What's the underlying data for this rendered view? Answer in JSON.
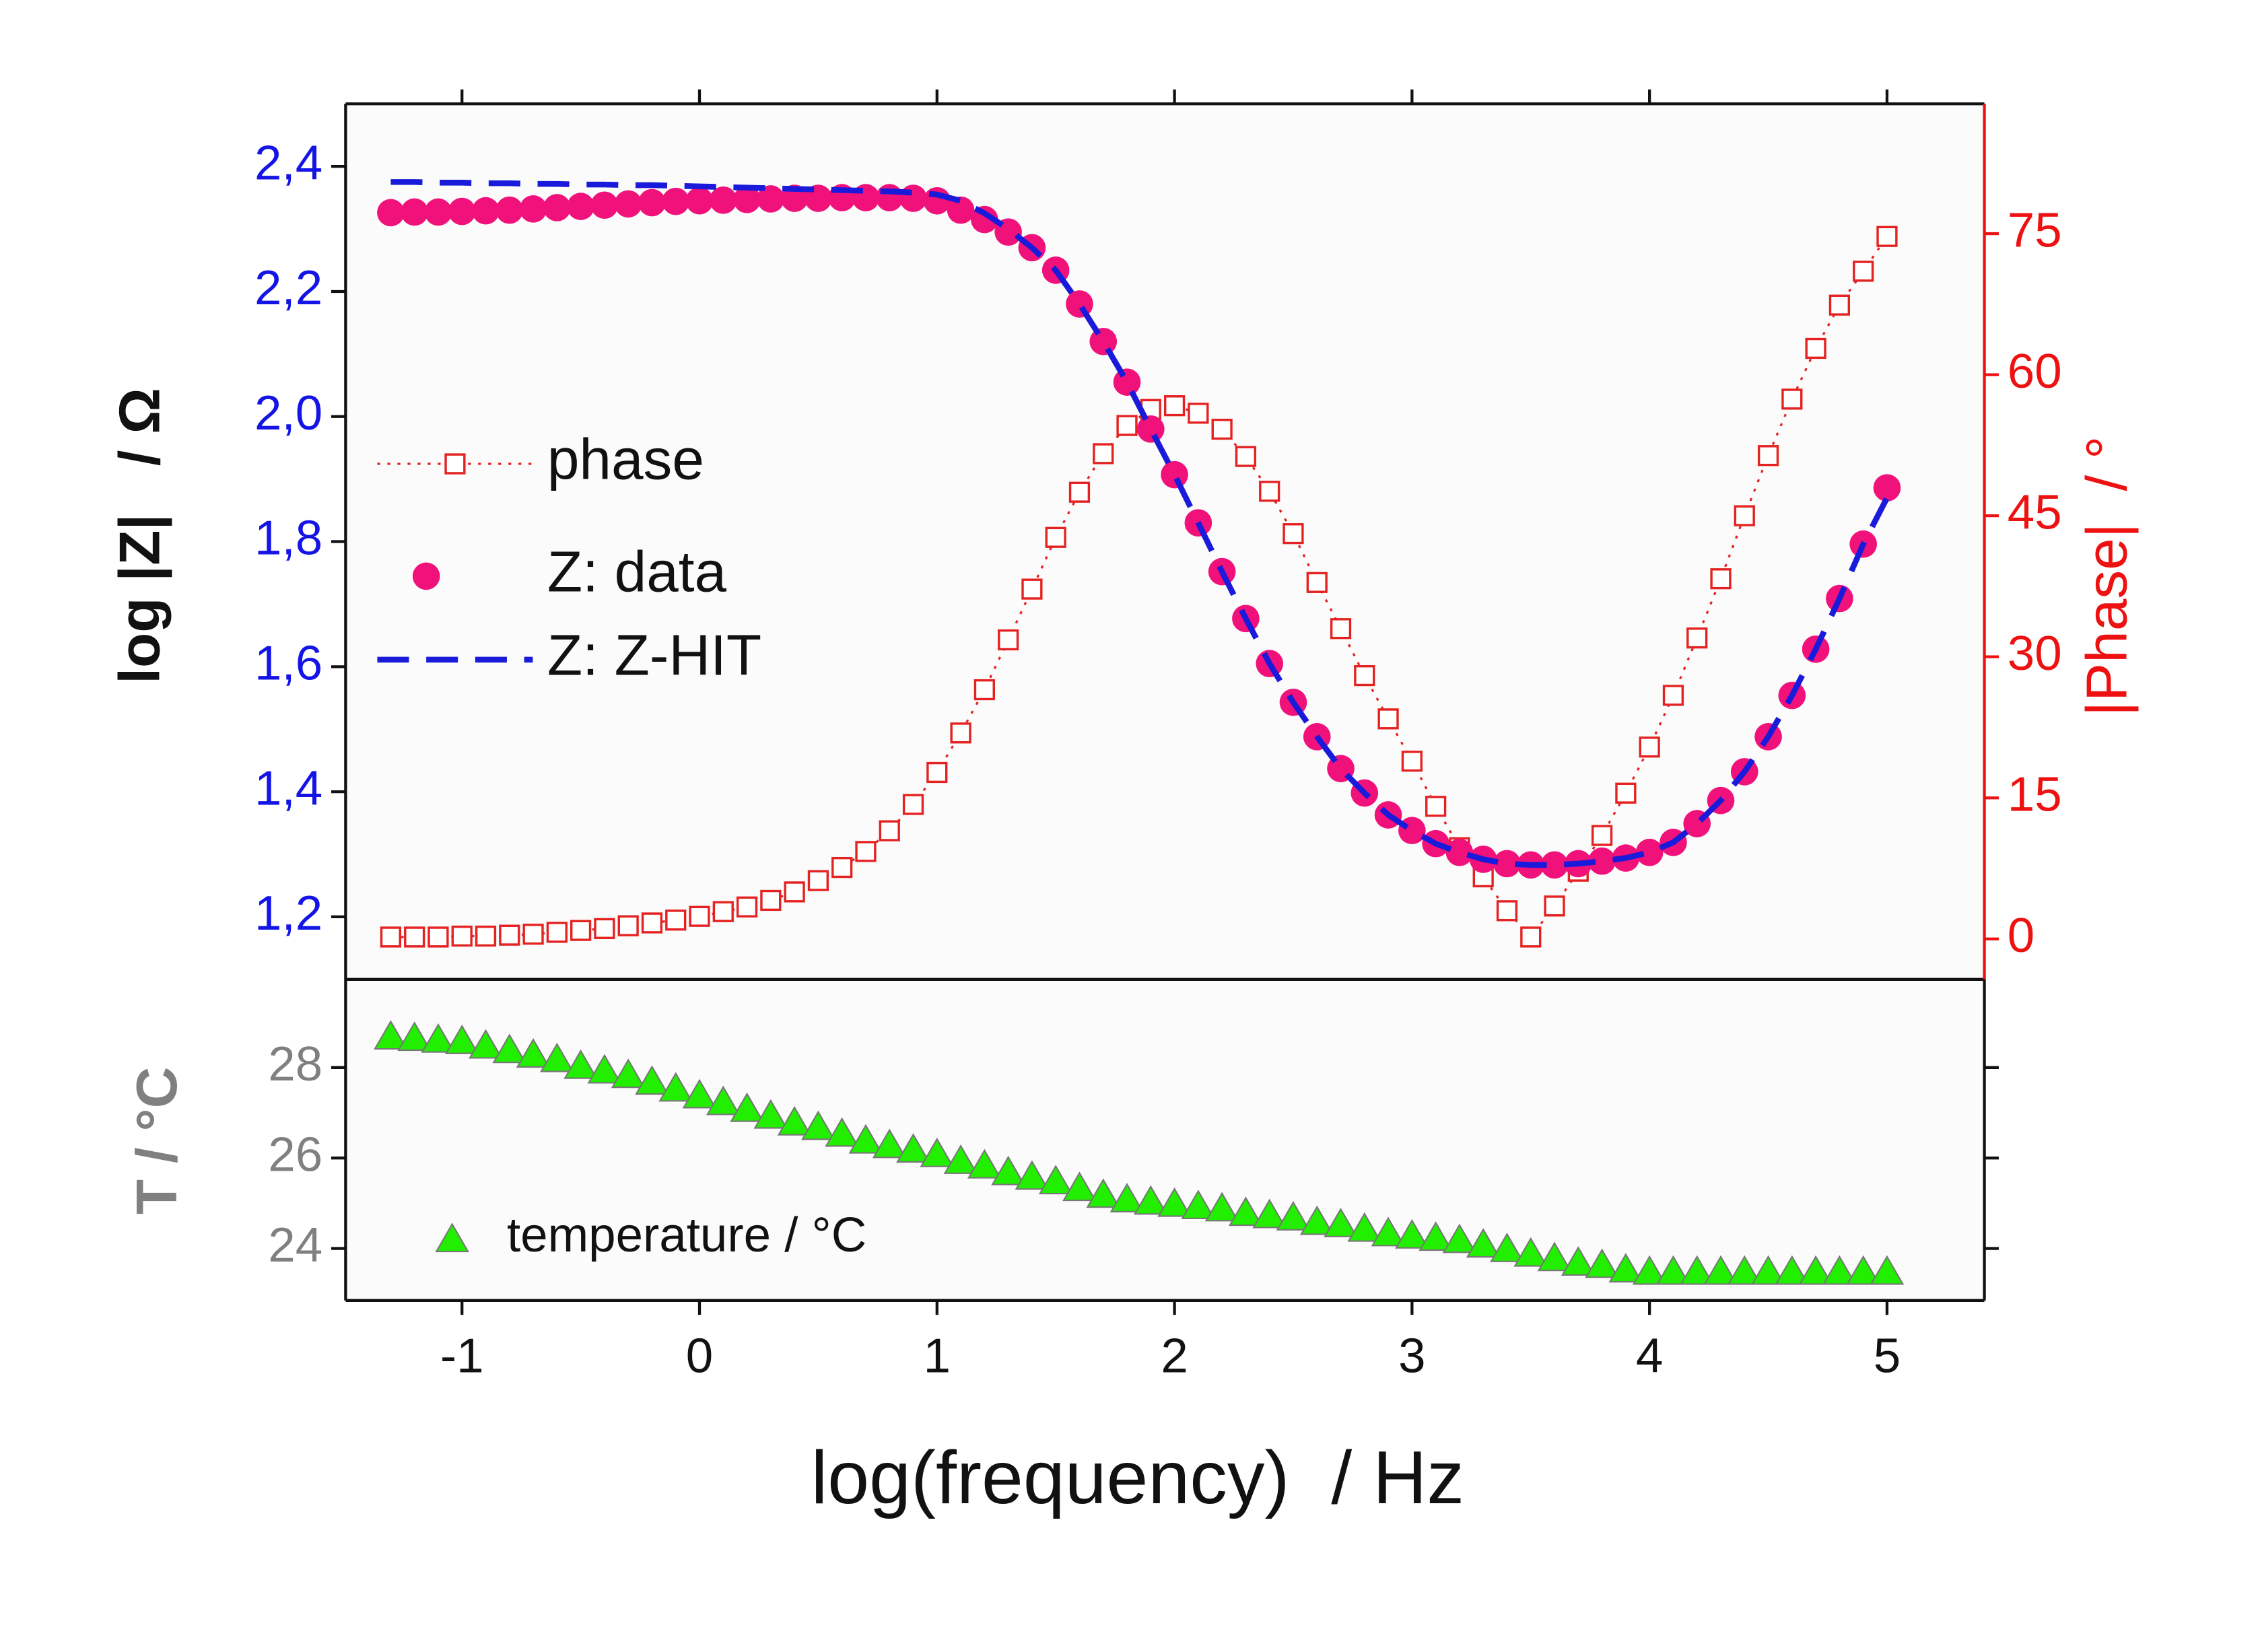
{
  "chart_data": [
    {
      "type": "line",
      "ylabel": "log |Z|   / Ω",
      "y2label": "|Phase|  / °",
      "x": [
        -1.3,
        -1.2,
        -1.1,
        -1.0,
        -0.9,
        -0.8,
        -0.7,
        -0.6,
        -0.5,
        -0.4,
        -0.3,
        -0.2,
        -0.1,
        0.0,
        0.1,
        0.2,
        0.3,
        0.4,
        0.5,
        0.6,
        0.7,
        0.8,
        0.9,
        1.0,
        1.1,
        1.2,
        1.3,
        1.4,
        1.5,
        1.6,
        1.7,
        1.8,
        1.9,
        2.0,
        2.1,
        2.2,
        2.3,
        2.4,
        2.5,
        2.6,
        2.7,
        2.8,
        2.9,
        3.0,
        3.1,
        3.2,
        3.3,
        3.4,
        3.5,
        3.6,
        3.7,
        3.8,
        3.9,
        4.0,
        4.1,
        4.2,
        4.3,
        4.4,
        4.5,
        4.6,
        4.7,
        4.8,
        4.9,
        5.0
      ],
      "ylim": [
        1.1,
        2.5
      ],
      "yticks": [
        {
          "value": 1.2,
          "label": "1,2"
        },
        {
          "value": 1.4,
          "label": "1,4"
        },
        {
          "value": 1.6,
          "label": "1,6"
        },
        {
          "value": 1.8,
          "label": "1,8"
        },
        {
          "value": 2.0,
          "label": "2,0"
        },
        {
          "value": 2.2,
          "label": "2,2"
        },
        {
          "value": 2.4,
          "label": "2,4"
        }
      ],
      "y_color": "#1414e6",
      "y2lim": [
        -4.3,
        88.8
      ],
      "y2ticks": [
        0,
        15,
        30,
        45,
        60,
        75
      ],
      "y2_color": "#ee1111",
      "legend": "center left",
      "series": [
        {
          "name": "phase",
          "axis": "y2",
          "color": "#e52222",
          "marker": "square-open",
          "line": "dotted",
          "values": [
            0.2,
            0.2,
            0.2,
            0.3,
            0.3,
            0.4,
            0.5,
            0.7,
            0.9,
            1.1,
            1.4,
            1.7,
            2.0,
            2.4,
            2.9,
            3.4,
            4.1,
            5.0,
            6.2,
            7.6,
            9.3,
            11.5,
            14.3,
            17.7,
            21.9,
            26.5,
            31.8,
            37.2,
            42.7,
            47.5,
            51.6,
            54.6,
            56.3,
            56.7,
            55.9,
            54.2,
            51.3,
            47.6,
            43.1,
            37.9,
            33.0,
            28.0,
            23.4,
            18.9,
            14.1,
            9.7,
            6.6,
            3.0,
            0.2,
            3.5,
            7.2,
            11.0,
            15.5,
            20.4,
            25.9,
            32.0,
            38.3,
            45.0,
            51.4,
            57.4,
            62.8,
            67.4,
            71.0,
            74.7
          ]
        },
        {
          "name": "Z: data",
          "color": "#f0127a",
          "marker": "circle",
          "values": [
            2.326,
            2.327,
            2.327,
            2.328,
            2.329,
            2.33,
            2.332,
            2.334,
            2.336,
            2.338,
            2.34,
            2.342,
            2.344,
            2.345,
            2.346,
            2.347,
            2.348,
            2.349,
            2.349,
            2.35,
            2.35,
            2.35,
            2.349,
            2.345,
            2.33,
            2.315,
            2.295,
            2.27,
            2.234,
            2.18,
            2.12,
            2.055,
            1.98,
            1.907,
            1.83,
            1.752,
            1.677,
            1.605,
            1.543,
            1.488,
            1.437,
            1.398,
            1.363,
            1.338,
            1.317,
            1.303,
            1.292,
            1.285,
            1.283,
            1.283,
            1.285,
            1.289,
            1.294,
            1.303,
            1.319,
            1.349,
            1.386,
            1.432,
            1.488,
            1.554,
            1.628,
            1.709,
            1.796,
            1.886
          ]
        },
        {
          "name": "Z: Z-HIT",
          "color": "#1a1adb",
          "line": "dashed",
          "values": [
            2.375,
            2.375,
            2.374,
            2.374,
            2.373,
            2.373,
            2.372,
            2.372,
            2.371,
            2.371,
            2.37,
            2.37,
            2.369,
            2.368,
            2.367,
            2.366,
            2.365,
            2.364,
            2.363,
            2.362,
            2.361,
            2.36,
            2.358,
            2.355,
            2.345,
            2.325,
            2.3,
            2.27,
            2.234,
            2.18,
            2.12,
            2.055,
            1.98,
            1.907,
            1.83,
            1.752,
            1.677,
            1.605,
            1.543,
            1.488,
            1.437,
            1.398,
            1.363,
            1.338,
            1.317,
            1.303,
            1.292,
            1.285,
            1.283,
            1.283,
            1.285,
            1.289,
            1.294,
            1.303,
            1.319,
            1.349,
            1.386,
            1.432,
            1.488,
            1.554,
            1.628,
            1.709,
            1.796,
            1.87
          ]
        }
      ]
    },
    {
      "type": "scatter",
      "xlabel": "log(frequency)  / Hz",
      "ylabel": "T / °C",
      "xlim": [
        -1.49,
        5.41
      ],
      "xticks": [
        -1,
        0,
        1,
        2,
        3,
        4,
        5
      ],
      "ylim": [
        22.85,
        29.95
      ],
      "yticks": [
        24,
        26,
        28
      ],
      "y_color": "#808080",
      "legend": "lower left",
      "series": [
        {
          "name": "temperature / °C",
          "color": "#22ee00",
          "marker": "triangle",
          "values": [
            28.7,
            28.67,
            28.63,
            28.6,
            28.5,
            28.4,
            28.3,
            28.2,
            28.05,
            27.95,
            27.85,
            27.7,
            27.55,
            27.4,
            27.25,
            27.1,
            26.95,
            26.8,
            26.7,
            26.55,
            26.4,
            26.3,
            26.2,
            26.1,
            25.95,
            25.85,
            25.7,
            25.6,
            25.5,
            25.35,
            25.2,
            25.1,
            25.05,
            25.0,
            24.95,
            24.9,
            24.8,
            24.75,
            24.7,
            24.6,
            24.55,
            24.45,
            24.35,
            24.3,
            24.25,
            24.2,
            24.1,
            24.0,
            23.9,
            23.8,
            23.7,
            23.65,
            23.55,
            23.5,
            23.5,
            23.5,
            23.5,
            23.5,
            23.5,
            23.5,
            23.5,
            23.5,
            23.5,
            23.5
          ]
        }
      ]
    }
  ]
}
